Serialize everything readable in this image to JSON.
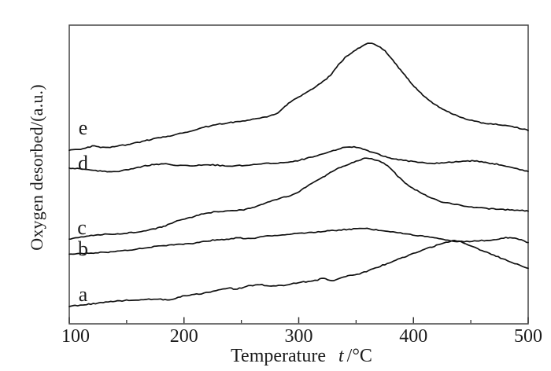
{
  "figure": {
    "background": "#ffffff",
    "frame_color": "#454545",
    "tick_color": "#333333",
    "line_color": "#101010",
    "text_color": "#1c1c1c"
  },
  "chart_data": {
    "type": "line",
    "title": "",
    "xlabel": "Temperature",
    "xlabel_symbol": "t",
    "xlabel_unit": "/°C",
    "xlabel_full": "Temperature  t /°C",
    "ylabel": "Oxygen desorbed/(a.u.)",
    "y_units": "a.u.",
    "xlim": [
      100,
      500
    ],
    "x_major_ticks": [
      100,
      200,
      300,
      400,
      500
    ],
    "x_major_tick_labels": [
      "100",
      "200",
      "300",
      "400",
      "500"
    ],
    "x_minor_ticks": [
      150,
      250,
      350,
      450
    ],
    "y_tick_labels": [],
    "grid": false,
    "legend": "curves labeled a–e at their left ends",
    "series": [
      {
        "name": "curve a",
        "label": "a",
        "label_at": [
          112,
          0.097
        ],
        "points": [
          [
            100,
            0.06
          ],
          [
            115,
            0.065
          ],
          [
            136,
            0.073
          ],
          [
            156,
            0.079
          ],
          [
            177,
            0.084
          ],
          [
            187,
            0.081
          ],
          [
            197,
            0.092
          ],
          [
            211,
            0.099
          ],
          [
            225,
            0.107
          ],
          [
            234,
            0.115
          ],
          [
            240,
            0.12
          ],
          [
            245,
            0.115
          ],
          [
            256,
            0.126
          ],
          [
            266,
            0.131
          ],
          [
            276,
            0.128
          ],
          [
            287,
            0.131
          ],
          [
            300,
            0.139
          ],
          [
            314,
            0.144
          ],
          [
            322,
            0.152
          ],
          [
            329,
            0.144
          ],
          [
            341,
            0.157
          ],
          [
            355,
            0.17
          ],
          [
            369,
            0.191
          ],
          [
            383,
            0.212
          ],
          [
            396,
            0.23
          ],
          [
            410,
            0.249
          ],
          [
            422,
            0.264
          ],
          [
            432,
            0.275
          ],
          [
            438,
            0.277
          ],
          [
            446,
            0.267
          ],
          [
            458,
            0.249
          ],
          [
            472,
            0.228
          ],
          [
            486,
            0.207
          ],
          [
            500,
            0.186
          ]
        ]
      },
      {
        "name": "curve b",
        "label": "b",
        "label_at": [
          112,
          0.251
        ],
        "points": [
          [
            100,
            0.233
          ],
          [
            115,
            0.236
          ],
          [
            132,
            0.241
          ],
          [
            155,
            0.249
          ],
          [
            178,
            0.259
          ],
          [
            201,
            0.267
          ],
          [
            213,
            0.272
          ],
          [
            223,
            0.28
          ],
          [
            235,
            0.283
          ],
          [
            247,
            0.288
          ],
          [
            256,
            0.285
          ],
          [
            269,
            0.291
          ],
          [
            290,
            0.298
          ],
          [
            311,
            0.306
          ],
          [
            331,
            0.314
          ],
          [
            353,
            0.319
          ],
          [
            362,
            0.317
          ],
          [
            376,
            0.309
          ],
          [
            393,
            0.301
          ],
          [
            410,
            0.293
          ],
          [
            424,
            0.285
          ],
          [
            436,
            0.277
          ],
          [
            451,
            0.277
          ],
          [
            468,
            0.28
          ],
          [
            484,
            0.288
          ],
          [
            492,
            0.283
          ],
          [
            500,
            0.272
          ]
        ]
      },
      {
        "name": "curve c",
        "label": "c",
        "label_at": [
          111,
          0.322
        ],
        "points": [
          [
            100,
            0.285
          ],
          [
            115,
            0.293
          ],
          [
            129,
            0.298
          ],
          [
            144,
            0.301
          ],
          [
            156,
            0.306
          ],
          [
            167,
            0.314
          ],
          [
            177,
            0.322
          ],
          [
            184,
            0.33
          ],
          [
            192,
            0.343
          ],
          [
            203,
            0.353
          ],
          [
            215,
            0.366
          ],
          [
            228,
            0.374
          ],
          [
            242,
            0.377
          ],
          [
            256,
            0.385
          ],
          [
            269,
            0.403
          ],
          [
            283,
            0.421
          ],
          [
            297,
            0.437
          ],
          [
            311,
            0.469
          ],
          [
            321,
            0.489
          ],
          [
            331,
            0.513
          ],
          [
            342,
            0.531
          ],
          [
            352,
            0.547
          ],
          [
            359,
            0.555
          ],
          [
            366,
            0.55
          ],
          [
            374,
            0.539
          ],
          [
            381,
            0.518
          ],
          [
            388,
            0.489
          ],
          [
            396,
            0.463
          ],
          [
            405,
            0.442
          ],
          [
            414,
            0.424
          ],
          [
            424,
            0.408
          ],
          [
            438,
            0.398
          ],
          [
            455,
            0.39
          ],
          [
            472,
            0.385
          ],
          [
            486,
            0.382
          ],
          [
            500,
            0.377
          ]
        ]
      },
      {
        "name": "curve d",
        "label": "d",
        "label_at": [
          112,
          0.537
        ],
        "points": [
          [
            100,
            0.521
          ],
          [
            119,
            0.516
          ],
          [
            139,
            0.51
          ],
          [
            160,
            0.524
          ],
          [
            180,
            0.534
          ],
          [
            201,
            0.529
          ],
          [
            221,
            0.534
          ],
          [
            242,
            0.529
          ],
          [
            263,
            0.534
          ],
          [
            280,
            0.537
          ],
          [
            297,
            0.545
          ],
          [
            314,
            0.563
          ],
          [
            328,
            0.579
          ],
          [
            342,
            0.592
          ],
          [
            352,
            0.589
          ],
          [
            362,
            0.576
          ],
          [
            372,
            0.563
          ],
          [
            383,
            0.552
          ],
          [
            396,
            0.545
          ],
          [
            414,
            0.539
          ],
          [
            431,
            0.542
          ],
          [
            451,
            0.545
          ],
          [
            465,
            0.537
          ],
          [
            479,
            0.529
          ],
          [
            500,
            0.51
          ]
        ]
      },
      {
        "name": "curve e",
        "label": "e",
        "label_at": [
          112,
          0.654
        ],
        "points": [
          [
            100,
            0.581
          ],
          [
            112,
            0.586
          ],
          [
            122,
            0.594
          ],
          [
            132,
            0.589
          ],
          [
            153,
            0.602
          ],
          [
            173,
            0.62
          ],
          [
            184,
            0.628
          ],
          [
            201,
            0.641
          ],
          [
            221,
            0.66
          ],
          [
            235,
            0.67
          ],
          [
            249,
            0.678
          ],
          [
            266,
            0.691
          ],
          [
            280,
            0.704
          ],
          [
            291,
            0.738
          ],
          [
            302,
            0.764
          ],
          [
            314,
            0.791
          ],
          [
            326,
            0.825
          ],
          [
            337,
            0.877
          ],
          [
            346,
            0.908
          ],
          [
            355,
            0.929
          ],
          [
            362,
            0.94
          ],
          [
            371,
            0.927
          ],
          [
            378,
            0.903
          ],
          [
            385,
            0.869
          ],
          [
            394,
            0.825
          ],
          [
            405,
            0.777
          ],
          [
            417,
            0.738
          ],
          [
            429,
            0.712
          ],
          [
            440,
            0.694
          ],
          [
            451,
            0.681
          ],
          [
            463,
            0.673
          ],
          [
            474,
            0.668
          ],
          [
            486,
            0.66
          ],
          [
            500,
            0.647
          ]
        ]
      }
    ]
  }
}
